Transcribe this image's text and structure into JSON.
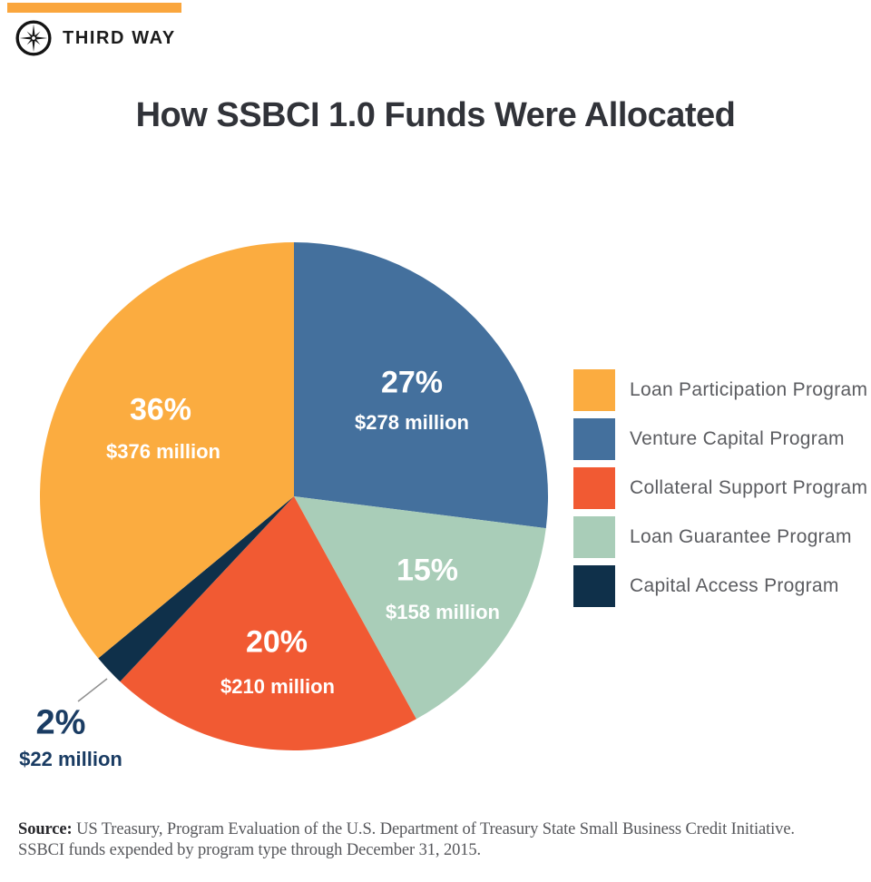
{
  "header": {
    "brand": "THIRD WAY",
    "bar_color": "#FAA63D"
  },
  "title": "How SSBCI 1.0 Funds Were Allocated",
  "chart_data": {
    "type": "pie",
    "title": "How SSBCI 1.0 Funds Were Allocated",
    "unit": "USD millions",
    "rotation": "clockwise starting at 12 o'clock",
    "slices": [
      {
        "name": "Venture Capital Program",
        "percent": 27,
        "percent_label": "27%",
        "value_millions": 278,
        "amount_label": "$278 million",
        "color": "#44709D"
      },
      {
        "name": "Loan Guarantee Program",
        "percent": 15,
        "percent_label": "15%",
        "value_millions": 158,
        "amount_label": "$158 million",
        "color": "#A9CDB8"
      },
      {
        "name": "Collateral Support Program",
        "percent": 20,
        "percent_label": "20%",
        "value_millions": 210,
        "amount_label": "$210 million",
        "color": "#F15A33"
      },
      {
        "name": "Capital Access Program",
        "percent": 2,
        "percent_label": "2%",
        "value_millions": 22,
        "amount_label": "$22 million",
        "color": "#0F304A"
      },
      {
        "name": "Loan Participation Program",
        "percent": 36,
        "percent_label": "36%",
        "value_millions": 376,
        "amount_label": "$376 million",
        "color": "#FBAC40"
      }
    ],
    "legend_position": "right",
    "legend": [
      {
        "label": "Loan Participation Program",
        "color": "#FBAC40"
      },
      {
        "label": "Venture Capital Program",
        "color": "#44709D"
      },
      {
        "label": "Collateral Support Program",
        "color": "#F15A33"
      },
      {
        "label": "Loan Guarantee Program",
        "color": "#A9CDB8"
      },
      {
        "label": "Capital Access Program",
        "color": "#0F304A"
      }
    ]
  },
  "source": {
    "label": "Source:",
    "line1": " US Treasury, Program Evaluation of the U.S. Department of Treasury State Small Business Credit Initiative.",
    "line2": "SSBCI funds expended by program type through December 31, 2015."
  }
}
